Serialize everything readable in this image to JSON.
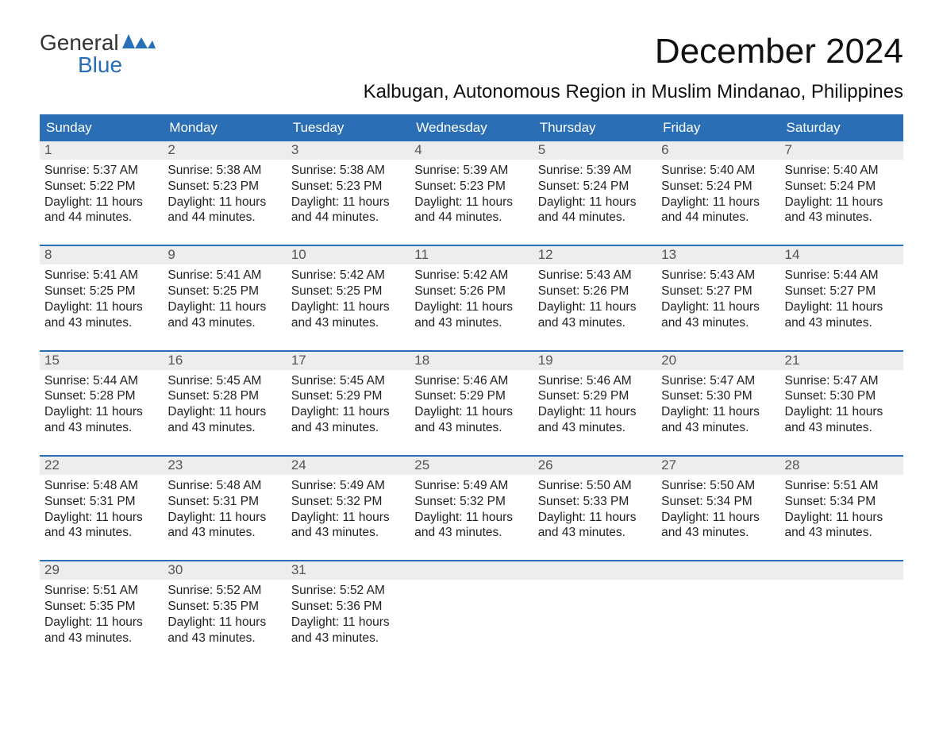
{
  "logo": {
    "line1": "General",
    "line2": "Blue"
  },
  "title": "December 2024",
  "location": "Kalbugan, Autonomous Region in Muslim Mindanao, Philippines",
  "colors": {
    "header_bg": "#2a6fb5",
    "header_text": "#ffffff",
    "daynum_bg": "#eceded",
    "rule": "#2a6fb5",
    "logo_blue": "#2a6fb5"
  },
  "dayNames": [
    "Sunday",
    "Monday",
    "Tuesday",
    "Wednesday",
    "Thursday",
    "Friday",
    "Saturday"
  ],
  "weeks": [
    [
      {
        "n": "1",
        "sunrise": "Sunrise: 5:37 AM",
        "sunset": "Sunset: 5:22 PM",
        "d1": "Daylight: 11 hours",
        "d2": "and 44 minutes."
      },
      {
        "n": "2",
        "sunrise": "Sunrise: 5:38 AM",
        "sunset": "Sunset: 5:23 PM",
        "d1": "Daylight: 11 hours",
        "d2": "and 44 minutes."
      },
      {
        "n": "3",
        "sunrise": "Sunrise: 5:38 AM",
        "sunset": "Sunset: 5:23 PM",
        "d1": "Daylight: 11 hours",
        "d2": "and 44 minutes."
      },
      {
        "n": "4",
        "sunrise": "Sunrise: 5:39 AM",
        "sunset": "Sunset: 5:23 PM",
        "d1": "Daylight: 11 hours",
        "d2": "and 44 minutes."
      },
      {
        "n": "5",
        "sunrise": "Sunrise: 5:39 AM",
        "sunset": "Sunset: 5:24 PM",
        "d1": "Daylight: 11 hours",
        "d2": "and 44 minutes."
      },
      {
        "n": "6",
        "sunrise": "Sunrise: 5:40 AM",
        "sunset": "Sunset: 5:24 PM",
        "d1": "Daylight: 11 hours",
        "d2": "and 44 minutes."
      },
      {
        "n": "7",
        "sunrise": "Sunrise: 5:40 AM",
        "sunset": "Sunset: 5:24 PM",
        "d1": "Daylight: 11 hours",
        "d2": "and 43 minutes."
      }
    ],
    [
      {
        "n": "8",
        "sunrise": "Sunrise: 5:41 AM",
        "sunset": "Sunset: 5:25 PM",
        "d1": "Daylight: 11 hours",
        "d2": "and 43 minutes."
      },
      {
        "n": "9",
        "sunrise": "Sunrise: 5:41 AM",
        "sunset": "Sunset: 5:25 PM",
        "d1": "Daylight: 11 hours",
        "d2": "and 43 minutes."
      },
      {
        "n": "10",
        "sunrise": "Sunrise: 5:42 AM",
        "sunset": "Sunset: 5:25 PM",
        "d1": "Daylight: 11 hours",
        "d2": "and 43 minutes."
      },
      {
        "n": "11",
        "sunrise": "Sunrise: 5:42 AM",
        "sunset": "Sunset: 5:26 PM",
        "d1": "Daylight: 11 hours",
        "d2": "and 43 minutes."
      },
      {
        "n": "12",
        "sunrise": "Sunrise: 5:43 AM",
        "sunset": "Sunset: 5:26 PM",
        "d1": "Daylight: 11 hours",
        "d2": "and 43 minutes."
      },
      {
        "n": "13",
        "sunrise": "Sunrise: 5:43 AM",
        "sunset": "Sunset: 5:27 PM",
        "d1": "Daylight: 11 hours",
        "d2": "and 43 minutes."
      },
      {
        "n": "14",
        "sunrise": "Sunrise: 5:44 AM",
        "sunset": "Sunset: 5:27 PM",
        "d1": "Daylight: 11 hours",
        "d2": "and 43 minutes."
      }
    ],
    [
      {
        "n": "15",
        "sunrise": "Sunrise: 5:44 AM",
        "sunset": "Sunset: 5:28 PM",
        "d1": "Daylight: 11 hours",
        "d2": "and 43 minutes."
      },
      {
        "n": "16",
        "sunrise": "Sunrise: 5:45 AM",
        "sunset": "Sunset: 5:28 PM",
        "d1": "Daylight: 11 hours",
        "d2": "and 43 minutes."
      },
      {
        "n": "17",
        "sunrise": "Sunrise: 5:45 AM",
        "sunset": "Sunset: 5:29 PM",
        "d1": "Daylight: 11 hours",
        "d2": "and 43 minutes."
      },
      {
        "n": "18",
        "sunrise": "Sunrise: 5:46 AM",
        "sunset": "Sunset: 5:29 PM",
        "d1": "Daylight: 11 hours",
        "d2": "and 43 minutes."
      },
      {
        "n": "19",
        "sunrise": "Sunrise: 5:46 AM",
        "sunset": "Sunset: 5:29 PM",
        "d1": "Daylight: 11 hours",
        "d2": "and 43 minutes."
      },
      {
        "n": "20",
        "sunrise": "Sunrise: 5:47 AM",
        "sunset": "Sunset: 5:30 PM",
        "d1": "Daylight: 11 hours",
        "d2": "and 43 minutes."
      },
      {
        "n": "21",
        "sunrise": "Sunrise: 5:47 AM",
        "sunset": "Sunset: 5:30 PM",
        "d1": "Daylight: 11 hours",
        "d2": "and 43 minutes."
      }
    ],
    [
      {
        "n": "22",
        "sunrise": "Sunrise: 5:48 AM",
        "sunset": "Sunset: 5:31 PM",
        "d1": "Daylight: 11 hours",
        "d2": "and 43 minutes."
      },
      {
        "n": "23",
        "sunrise": "Sunrise: 5:48 AM",
        "sunset": "Sunset: 5:31 PM",
        "d1": "Daylight: 11 hours",
        "d2": "and 43 minutes."
      },
      {
        "n": "24",
        "sunrise": "Sunrise: 5:49 AM",
        "sunset": "Sunset: 5:32 PM",
        "d1": "Daylight: 11 hours",
        "d2": "and 43 minutes."
      },
      {
        "n": "25",
        "sunrise": "Sunrise: 5:49 AM",
        "sunset": "Sunset: 5:32 PM",
        "d1": "Daylight: 11 hours",
        "d2": "and 43 minutes."
      },
      {
        "n": "26",
        "sunrise": "Sunrise: 5:50 AM",
        "sunset": "Sunset: 5:33 PM",
        "d1": "Daylight: 11 hours",
        "d2": "and 43 minutes."
      },
      {
        "n": "27",
        "sunrise": "Sunrise: 5:50 AM",
        "sunset": "Sunset: 5:34 PM",
        "d1": "Daylight: 11 hours",
        "d2": "and 43 minutes."
      },
      {
        "n": "28",
        "sunrise": "Sunrise: 5:51 AM",
        "sunset": "Sunset: 5:34 PM",
        "d1": "Daylight: 11 hours",
        "d2": "and 43 minutes."
      }
    ],
    [
      {
        "n": "29",
        "sunrise": "Sunrise: 5:51 AM",
        "sunset": "Sunset: 5:35 PM",
        "d1": "Daylight: 11 hours",
        "d2": "and 43 minutes."
      },
      {
        "n": "30",
        "sunrise": "Sunrise: 5:52 AM",
        "sunset": "Sunset: 5:35 PM",
        "d1": "Daylight: 11 hours",
        "d2": "and 43 minutes."
      },
      {
        "n": "31",
        "sunrise": "Sunrise: 5:52 AM",
        "sunset": "Sunset: 5:36 PM",
        "d1": "Daylight: 11 hours",
        "d2": "and 43 minutes."
      },
      {
        "n": "",
        "sunrise": "",
        "sunset": "",
        "d1": "",
        "d2": ""
      },
      {
        "n": "",
        "sunrise": "",
        "sunset": "",
        "d1": "",
        "d2": ""
      },
      {
        "n": "",
        "sunrise": "",
        "sunset": "",
        "d1": "",
        "d2": ""
      },
      {
        "n": "",
        "sunrise": "",
        "sunset": "",
        "d1": "",
        "d2": ""
      }
    ]
  ]
}
